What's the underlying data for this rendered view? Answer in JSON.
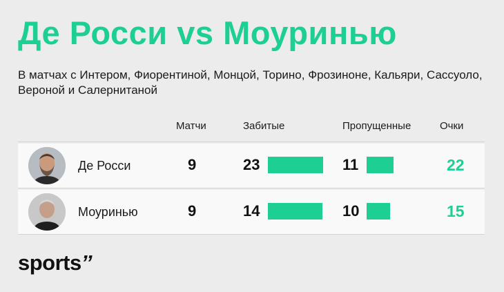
{
  "header": {
    "title": "Де Росси vs Моуринью",
    "subtitle": "В матчах с Интером, Фиорентиной, Монцой, Торино, Фрозиноне, Кальяри, Сассуоло, Вероной и Салернитаной"
  },
  "table": {
    "columns": {
      "matches": "Матчи",
      "scored": "Забитые",
      "conceded": "Пропущенные",
      "points": "Очки"
    },
    "rows": [
      {
        "name": "Де Росси",
        "matches": "9",
        "scored": "23",
        "conceded": "11",
        "points": "22"
      },
      {
        "name": "Моуринью",
        "matches": "9",
        "scored": "14",
        "conceded": "10",
        "points": "15"
      }
    ]
  },
  "brand": {
    "logo": "sports",
    "logo_mark": "’’"
  },
  "colors": {
    "accent": "#1dcf92",
    "background": "#ececec",
    "row": "#f9f9f9"
  },
  "icons": {
    "avatar_1": "coach-photo-de-rossi",
    "avatar_2": "coach-photo-mourinho"
  }
}
